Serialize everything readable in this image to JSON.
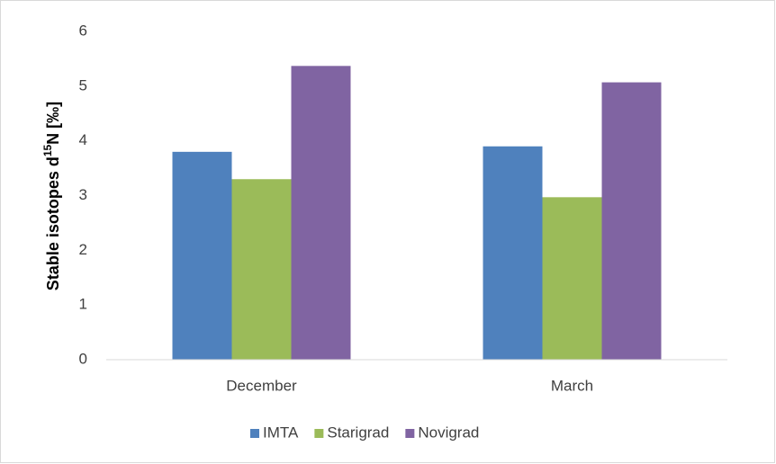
{
  "chart_data": {
    "type": "bar",
    "ylabel": [
      "Stable isotopes  d",
      "15",
      "N [‰]"
    ],
    "categories": [
      "December",
      "March"
    ],
    "series": [
      {
        "name": "IMTA",
        "color": "#4f81bd",
        "values": [
          3.8,
          3.9
        ]
      },
      {
        "name": "Starigrad",
        "color": "#9bbb59",
        "values": [
          3.3,
          2.97
        ]
      },
      {
        "name": "Novigrad",
        "color": "#8064a2",
        "values": [
          5.37,
          5.07
        ]
      }
    ],
    "ylim": [
      0,
      6
    ],
    "yticks": [
      0,
      1,
      2,
      3,
      4,
      5,
      6
    ],
    "grid": false,
    "legend": "bottom"
  }
}
